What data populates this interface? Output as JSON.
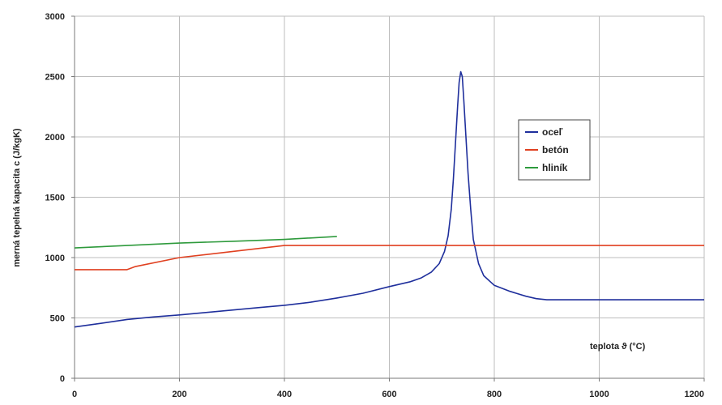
{
  "chart_data": {
    "type": "line",
    "xlabel": "teplota ϑ (°C)",
    "ylabel": "merná tepelná kapacita c (J/kgK)",
    "xlim": [
      0,
      1200
    ],
    "ylim": [
      0,
      3000
    ],
    "x_ticks": [
      "0",
      "200",
      "400",
      "600",
      "800",
      "1000",
      "1200"
    ],
    "y_ticks": [
      "0",
      "500",
      "1000",
      "1500",
      "2000",
      "2500",
      "3000"
    ],
    "grid": true,
    "legend_position": "right",
    "series": [
      {
        "name": "oceľ",
        "color": "#1f2f9c",
        "points": [
          [
            0,
            425
          ],
          [
            50,
            455
          ],
          [
            100,
            487
          ],
          [
            150,
            508
          ],
          [
            200,
            525
          ],
          [
            250,
            545
          ],
          [
            300,
            565
          ],
          [
            350,
            585
          ],
          [
            400,
            605
          ],
          [
            450,
            630
          ],
          [
            500,
            665
          ],
          [
            550,
            705
          ],
          [
            600,
            760
          ],
          [
            640,
            800
          ],
          [
            660,
            830
          ],
          [
            680,
            880
          ],
          [
            695,
            950
          ],
          [
            705,
            1050
          ],
          [
            712,
            1180
          ],
          [
            718,
            1400
          ],
          [
            722,
            1650
          ],
          [
            726,
            1950
          ],
          [
            730,
            2250
          ],
          [
            733,
            2450
          ],
          [
            736,
            2540
          ],
          [
            739,
            2500
          ],
          [
            742,
            2300
          ],
          [
            746,
            2000
          ],
          [
            750,
            1700
          ],
          [
            755,
            1400
          ],
          [
            760,
            1150
          ],
          [
            770,
            950
          ],
          [
            780,
            850
          ],
          [
            800,
            770
          ],
          [
            830,
            720
          ],
          [
            860,
            680
          ],
          [
            880,
            660
          ],
          [
            900,
            650
          ],
          [
            950,
            650
          ],
          [
            1000,
            650
          ],
          [
            1100,
            650
          ],
          [
            1200,
            650
          ]
        ]
      },
      {
        "name": "betón",
        "color": "#e04020",
        "points": [
          [
            0,
            900
          ],
          [
            100,
            900
          ],
          [
            115,
            925
          ],
          [
            200,
            1000
          ],
          [
            300,
            1050
          ],
          [
            400,
            1100
          ],
          [
            500,
            1100
          ],
          [
            600,
            1100
          ],
          [
            700,
            1100
          ],
          [
            800,
            1100
          ],
          [
            900,
            1100
          ],
          [
            1000,
            1100
          ],
          [
            1100,
            1100
          ],
          [
            1200,
            1100
          ]
        ]
      },
      {
        "name": "hliník",
        "color": "#2e9a3c",
        "points": [
          [
            0,
            1080
          ],
          [
            100,
            1100
          ],
          [
            200,
            1120
          ],
          [
            300,
            1135
          ],
          [
            400,
            1150
          ],
          [
            500,
            1175
          ]
        ]
      }
    ]
  }
}
